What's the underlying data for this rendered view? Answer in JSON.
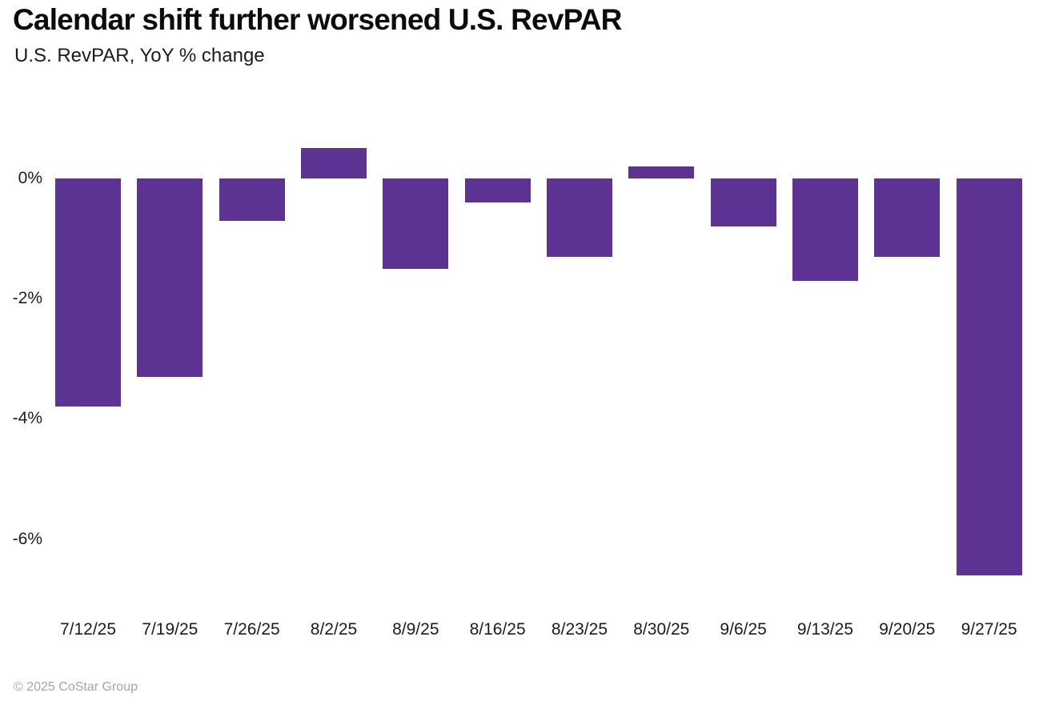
{
  "header": {
    "title": "Calendar shift further worsened U.S. RevPAR",
    "subtitle": "U.S. RevPAR, YoY % change"
  },
  "footer": {
    "copyright": "© 2025 CoStar Group"
  },
  "colors": {
    "bar": "#5c3292",
    "title_text": "#0c0c0c",
    "axis_text": "#1c1c1c",
    "muted_text": "#a5a5a5",
    "background": "#ffffff"
  },
  "chart_data": {
    "type": "bar",
    "title": "Calendar shift further worsened U.S. RevPAR",
    "subtitle": "U.S. RevPAR, YoY % change",
    "xlabel": "",
    "ylabel": "U.S. RevPAR, YoY % change",
    "categories": [
      "7/12/25",
      "7/19/25",
      "7/26/25",
      "8/2/25",
      "8/9/25",
      "8/16/25",
      "8/23/25",
      "8/30/25",
      "9/6/25",
      "9/13/25",
      "9/20/25",
      "9/27/25"
    ],
    "values": [
      -3.8,
      -3.3,
      -0.7,
      0.5,
      -1.5,
      -0.4,
      -1.3,
      0.2,
      -0.8,
      -1.7,
      -1.3,
      -6.6
    ],
    "unit": "%",
    "y_ticks": [
      0,
      -2,
      -4,
      -6
    ],
    "y_tick_labels": [
      "0%",
      "-2%",
      "-4%",
      "-6%"
    ],
    "ylim": [
      -7,
      1
    ],
    "grid": false,
    "legend": "none",
    "bar_color": "#5c3292"
  }
}
